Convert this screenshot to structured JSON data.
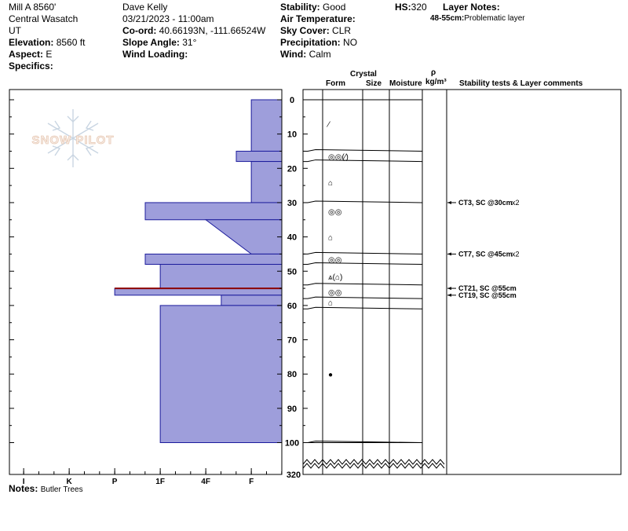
{
  "header": {
    "location": "Mill A 8560'",
    "range": "Central Wasatch",
    "state": "UT",
    "elevation_label": "Elevation:",
    "elevation_value": "8560 ft",
    "aspect_label": "Aspect:",
    "aspect_value": "E",
    "specifics_label": "Specifics:",
    "observer": "Dave Kelly",
    "datetime": "03/21/2023 - 11:00am",
    "coord_label": "Co-ord:",
    "coord_value": "40.66193N, -111.66524W",
    "slope_label": "Slope Angle:",
    "slope_value": "31°",
    "wind_loading_label": "Wind Loading:",
    "stability_label": "Stability:",
    "stability_value": "Good",
    "air_temp_label": "Air Temperature:",
    "sky_label": "Sky Cover:",
    "sky_value": "CLR",
    "precip_label": "Precipitation:",
    "precip_value": "NO",
    "wind_label": "Wind:",
    "wind_value": "Calm",
    "hs_label": "HS:",
    "hs_value": "320",
    "layer_notes_label": "Layer Notes:",
    "layer_note_range": "48-55cm:",
    "layer_note_text": "Problematic layer"
  },
  "logo_text": "SNOW PILOT",
  "notes_label": "Notes:",
  "notes_value": "Butler Trees",
  "columns": {
    "crystal": "Crystal",
    "form": "Form",
    "size": "Size",
    "moisture": "Moisture",
    "rho": "ρ",
    "density_unit": "kg/m³",
    "comments": "Stability tests & Layer comments"
  },
  "colors": {
    "layer_fill": "#9E9EDB",
    "layer_stroke": "#1C1C9C",
    "problem_line": "#8B0000"
  },
  "chart_data": {
    "type": "bar",
    "orientation": "horizontal",
    "depth_axis": {
      "label": "",
      "ticks": [
        "0",
        "10",
        "20",
        "30",
        "40",
        "50",
        "60",
        "70",
        "80",
        "90",
        "100"
      ],
      "bottom_label": "320",
      "range_cm": [
        0,
        100
      ],
      "break_after": 100
    },
    "hardness_axis": {
      "ticks": [
        "I",
        "K",
        "P",
        "1F",
        "4F",
        "F"
      ]
    },
    "layers": [
      {
        "top": 0,
        "bottom": 15,
        "hardness": 0.67
      },
      {
        "top": 15,
        "bottom": 18,
        "hardness": 1.0
      },
      {
        "top": 18,
        "bottom": 30,
        "hardness": 0.67
      },
      {
        "top": 30,
        "bottom": 35,
        "hardness": 3.0
      },
      {
        "top": 35,
        "bottom": 45,
        "hardness_top": 1.67,
        "hardness_bottom": 0.67
      },
      {
        "top": 45,
        "bottom": 48,
        "hardness": 3.0
      },
      {
        "top": 48,
        "bottom": 55,
        "hardness": 2.67
      },
      {
        "top": 55,
        "bottom": 57,
        "hardness": 3.67
      },
      {
        "top": 57,
        "bottom": 60,
        "hardness": 1.33
      },
      {
        "top": 60,
        "bottom": 100,
        "hardness": 2.67
      }
    ],
    "problem_layer_depth": 55,
    "crystal_forms": [
      {
        "depth": 7,
        "label": "⁄"
      },
      {
        "depth": 16.5,
        "label": "◎◎(⁄)"
      },
      {
        "depth": 24,
        "label": "⌂"
      },
      {
        "depth": 32.5,
        "label": "◎◎"
      },
      {
        "depth": 40,
        "label": "⌂"
      },
      {
        "depth": 46.5,
        "label": "◎◎"
      },
      {
        "depth": 51.5,
        "label": "⩓(⌂)"
      },
      {
        "depth": 56,
        "label": "◎◎"
      },
      {
        "depth": 59,
        "label": "⌂"
      },
      {
        "depth": 80,
        "label": "●"
      }
    ],
    "layer_boundaries": [
      15,
      18,
      30,
      45,
      48,
      54,
      58,
      61,
      100
    ],
    "stability_tests": [
      {
        "depth": 30,
        "label": "CT3, SC @30cm",
        "multiplier": "x2"
      },
      {
        "depth": 45,
        "label": "CT7, SC @45cm",
        "multiplier": "x2"
      },
      {
        "depth": 55,
        "label": "CT21, SC @55cm",
        "multiplier": ""
      },
      {
        "depth": 57,
        "label": "CT19, SC @55cm",
        "multiplier": ""
      }
    ]
  }
}
